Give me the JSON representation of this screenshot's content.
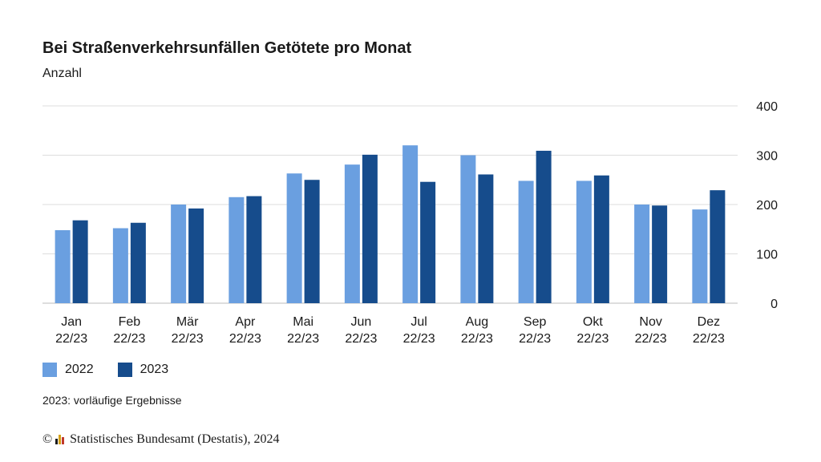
{
  "title": "Bei Straßenverkehrsunfällen Getötete pro Monat",
  "subtitle": "Anzahl",
  "note": "2023: vorläufige Ergebnisse",
  "source": {
    "copyright": "©",
    "text": "Statistisches Bundesamt (Destatis), 2024"
  },
  "colors": {
    "s2022": "#6a9fe0",
    "s2023": "#164c8c",
    "grid": "#dddddd"
  },
  "chart_data": {
    "type": "bar",
    "title": "Bei Straßenverkehrsunfällen Getötete pro Monat",
    "ylabel": "Anzahl",
    "categories": [
      "Jan",
      "Feb",
      "Mär",
      "Apr",
      "Mai",
      "Jun",
      "Jul",
      "Aug",
      "Sep",
      "Okt",
      "Nov",
      "Dez"
    ],
    "category_sublabel": "22/23",
    "ylim": [
      0,
      400
    ],
    "yticks": [
      0,
      100,
      200,
      300,
      400
    ],
    "y_axis_side": "right",
    "grid": true,
    "legend_position": "bottom-left",
    "series": [
      {
        "name": "2022",
        "values": [
          148,
          152,
          200,
          215,
          263,
          281,
          320,
          300,
          248,
          248,
          200,
          190
        ]
      },
      {
        "name": "2023",
        "values": [
          168,
          163,
          192,
          217,
          250,
          301,
          246,
          261,
          309,
          259,
          198,
          229
        ]
      }
    ]
  }
}
